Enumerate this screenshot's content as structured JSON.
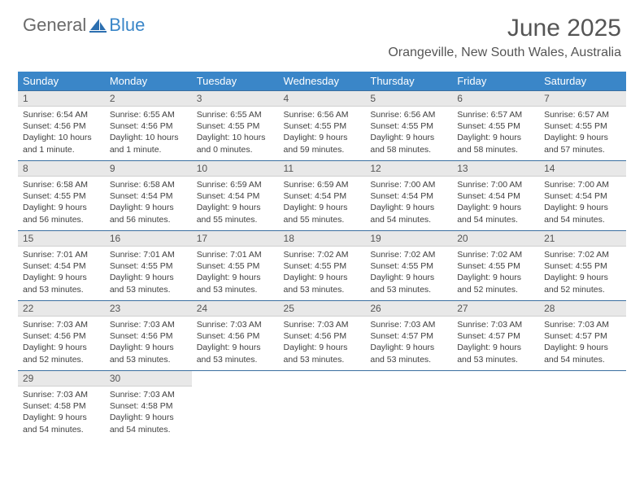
{
  "brand": {
    "word1": "General",
    "word2": "Blue",
    "logo_color": "#2c6fb0"
  },
  "title": "June 2025",
  "location": "Orangeville, New South Wales, Australia",
  "colors": {
    "header_bg": "#3a86c8",
    "header_text": "#ffffff",
    "daynum_bg": "#e8e8e8",
    "week_divider": "#3a6fa0",
    "body_text": "#404040"
  },
  "day_headers": [
    "Sunday",
    "Monday",
    "Tuesday",
    "Wednesday",
    "Thursday",
    "Friday",
    "Saturday"
  ],
  "weeks": [
    [
      {
        "n": "1",
        "sr": "Sunrise: 6:54 AM",
        "ss": "Sunset: 4:56 PM",
        "d1": "Daylight: 10 hours",
        "d2": "and 1 minute."
      },
      {
        "n": "2",
        "sr": "Sunrise: 6:55 AM",
        "ss": "Sunset: 4:56 PM",
        "d1": "Daylight: 10 hours",
        "d2": "and 1 minute."
      },
      {
        "n": "3",
        "sr": "Sunrise: 6:55 AM",
        "ss": "Sunset: 4:55 PM",
        "d1": "Daylight: 10 hours",
        "d2": "and 0 minutes."
      },
      {
        "n": "4",
        "sr": "Sunrise: 6:56 AM",
        "ss": "Sunset: 4:55 PM",
        "d1": "Daylight: 9 hours",
        "d2": "and 59 minutes."
      },
      {
        "n": "5",
        "sr": "Sunrise: 6:56 AM",
        "ss": "Sunset: 4:55 PM",
        "d1": "Daylight: 9 hours",
        "d2": "and 58 minutes."
      },
      {
        "n": "6",
        "sr": "Sunrise: 6:57 AM",
        "ss": "Sunset: 4:55 PM",
        "d1": "Daylight: 9 hours",
        "d2": "and 58 minutes."
      },
      {
        "n": "7",
        "sr": "Sunrise: 6:57 AM",
        "ss": "Sunset: 4:55 PM",
        "d1": "Daylight: 9 hours",
        "d2": "and 57 minutes."
      }
    ],
    [
      {
        "n": "8",
        "sr": "Sunrise: 6:58 AM",
        "ss": "Sunset: 4:55 PM",
        "d1": "Daylight: 9 hours",
        "d2": "and 56 minutes."
      },
      {
        "n": "9",
        "sr": "Sunrise: 6:58 AM",
        "ss": "Sunset: 4:54 PM",
        "d1": "Daylight: 9 hours",
        "d2": "and 56 minutes."
      },
      {
        "n": "10",
        "sr": "Sunrise: 6:59 AM",
        "ss": "Sunset: 4:54 PM",
        "d1": "Daylight: 9 hours",
        "d2": "and 55 minutes."
      },
      {
        "n": "11",
        "sr": "Sunrise: 6:59 AM",
        "ss": "Sunset: 4:54 PM",
        "d1": "Daylight: 9 hours",
        "d2": "and 55 minutes."
      },
      {
        "n": "12",
        "sr": "Sunrise: 7:00 AM",
        "ss": "Sunset: 4:54 PM",
        "d1": "Daylight: 9 hours",
        "d2": "and 54 minutes."
      },
      {
        "n": "13",
        "sr": "Sunrise: 7:00 AM",
        "ss": "Sunset: 4:54 PM",
        "d1": "Daylight: 9 hours",
        "d2": "and 54 minutes."
      },
      {
        "n": "14",
        "sr": "Sunrise: 7:00 AM",
        "ss": "Sunset: 4:54 PM",
        "d1": "Daylight: 9 hours",
        "d2": "and 54 minutes."
      }
    ],
    [
      {
        "n": "15",
        "sr": "Sunrise: 7:01 AM",
        "ss": "Sunset: 4:54 PM",
        "d1": "Daylight: 9 hours",
        "d2": "and 53 minutes."
      },
      {
        "n": "16",
        "sr": "Sunrise: 7:01 AM",
        "ss": "Sunset: 4:55 PM",
        "d1": "Daylight: 9 hours",
        "d2": "and 53 minutes."
      },
      {
        "n": "17",
        "sr": "Sunrise: 7:01 AM",
        "ss": "Sunset: 4:55 PM",
        "d1": "Daylight: 9 hours",
        "d2": "and 53 minutes."
      },
      {
        "n": "18",
        "sr": "Sunrise: 7:02 AM",
        "ss": "Sunset: 4:55 PM",
        "d1": "Daylight: 9 hours",
        "d2": "and 53 minutes."
      },
      {
        "n": "19",
        "sr": "Sunrise: 7:02 AM",
        "ss": "Sunset: 4:55 PM",
        "d1": "Daylight: 9 hours",
        "d2": "and 53 minutes."
      },
      {
        "n": "20",
        "sr": "Sunrise: 7:02 AM",
        "ss": "Sunset: 4:55 PM",
        "d1": "Daylight: 9 hours",
        "d2": "and 52 minutes."
      },
      {
        "n": "21",
        "sr": "Sunrise: 7:02 AM",
        "ss": "Sunset: 4:55 PM",
        "d1": "Daylight: 9 hours",
        "d2": "and 52 minutes."
      }
    ],
    [
      {
        "n": "22",
        "sr": "Sunrise: 7:03 AM",
        "ss": "Sunset: 4:56 PM",
        "d1": "Daylight: 9 hours",
        "d2": "and 52 minutes."
      },
      {
        "n": "23",
        "sr": "Sunrise: 7:03 AM",
        "ss": "Sunset: 4:56 PM",
        "d1": "Daylight: 9 hours",
        "d2": "and 53 minutes."
      },
      {
        "n": "24",
        "sr": "Sunrise: 7:03 AM",
        "ss": "Sunset: 4:56 PM",
        "d1": "Daylight: 9 hours",
        "d2": "and 53 minutes."
      },
      {
        "n": "25",
        "sr": "Sunrise: 7:03 AM",
        "ss": "Sunset: 4:56 PM",
        "d1": "Daylight: 9 hours",
        "d2": "and 53 minutes."
      },
      {
        "n": "26",
        "sr": "Sunrise: 7:03 AM",
        "ss": "Sunset: 4:57 PM",
        "d1": "Daylight: 9 hours",
        "d2": "and 53 minutes."
      },
      {
        "n": "27",
        "sr": "Sunrise: 7:03 AM",
        "ss": "Sunset: 4:57 PM",
        "d1": "Daylight: 9 hours",
        "d2": "and 53 minutes."
      },
      {
        "n": "28",
        "sr": "Sunrise: 7:03 AM",
        "ss": "Sunset: 4:57 PM",
        "d1": "Daylight: 9 hours",
        "d2": "and 54 minutes."
      }
    ],
    [
      {
        "n": "29",
        "sr": "Sunrise: 7:03 AM",
        "ss": "Sunset: 4:58 PM",
        "d1": "Daylight: 9 hours",
        "d2": "and 54 minutes."
      },
      {
        "n": "30",
        "sr": "Sunrise: 7:03 AM",
        "ss": "Sunset: 4:58 PM",
        "d1": "Daylight: 9 hours",
        "d2": "and 54 minutes."
      },
      null,
      null,
      null,
      null,
      null
    ]
  ]
}
